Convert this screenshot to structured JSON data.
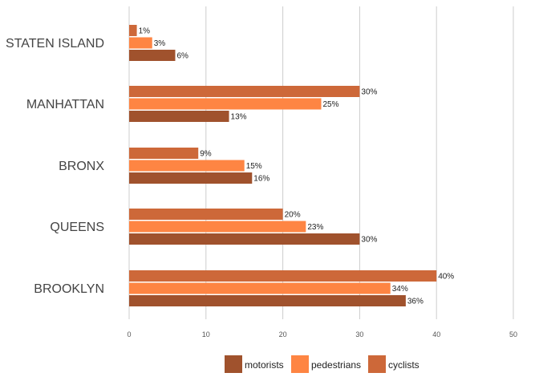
{
  "chart_data": {
    "type": "bar",
    "orientation": "horizontal",
    "title": "",
    "xlabel": "",
    "ylabel": "",
    "xlim": [
      0,
      50
    ],
    "xticks": [
      0,
      10,
      20,
      30,
      40,
      50
    ],
    "grid": true,
    "legend_position": "bottom",
    "categories": [
      "STATEN ISLAND",
      "MANHATTAN",
      "BRONX",
      "QUEENS",
      "BROOKLYN"
    ],
    "series": [
      {
        "name": "cyclists",
        "color": "#cd6839",
        "values": [
          1,
          30,
          9,
          20,
          40
        ],
        "labels": [
          "1%",
          "30%",
          "9%",
          "20%",
          "40%"
        ]
      },
      {
        "name": "pedestrians",
        "color": "#fe8543",
        "values": [
          3,
          25,
          15,
          23,
          34
        ],
        "labels": [
          "3%",
          "25%",
          "15%",
          "23%",
          "34%"
        ]
      },
      {
        "name": "motorists",
        "color": "#a0522d",
        "values": [
          6,
          13,
          16,
          30,
          36
        ],
        "labels": [
          "6%",
          "13%",
          "16%",
          "30%",
          "36%"
        ]
      }
    ],
    "legend_order": [
      "motorists",
      "pedestrians",
      "cyclists"
    ]
  }
}
